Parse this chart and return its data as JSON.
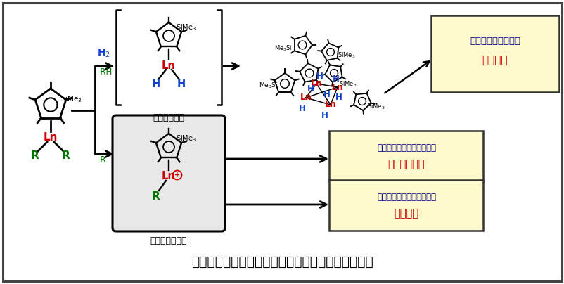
{
  "title": "ハーフサンドイッチ型希土類錯体に基づく触媒創成",
  "bg": "#ffffff",
  "red": "#cc0000",
  "blue": "#1144cc",
  "green": "#007700",
  "black": "#000000",
  "navy": "#000080",
  "box_bg": "#fffacd",
  "cat_bg": "#e8e8e8",
  "border": "#444444",
  "hydride_label": "ヒドリド錯体",
  "cation_label": "カチオン性錯体",
  "box1_line1": "複数の金属ヒドリド",
  "box1_line2": "協奏機能",
  "box2_line1": "特異な選択性・活性を示す",
  "box2_line2": "有機合成触媒",
  "box3_line1": "特異な選択性・活性を示す",
  "box3_line2": "重合触媒",
  "h2_label": "H$_2$",
  "rh_label": "-RH",
  "r_label": "-R",
  "sime3": "SiMe$_3$",
  "me3si": "Me$_3$Si"
}
